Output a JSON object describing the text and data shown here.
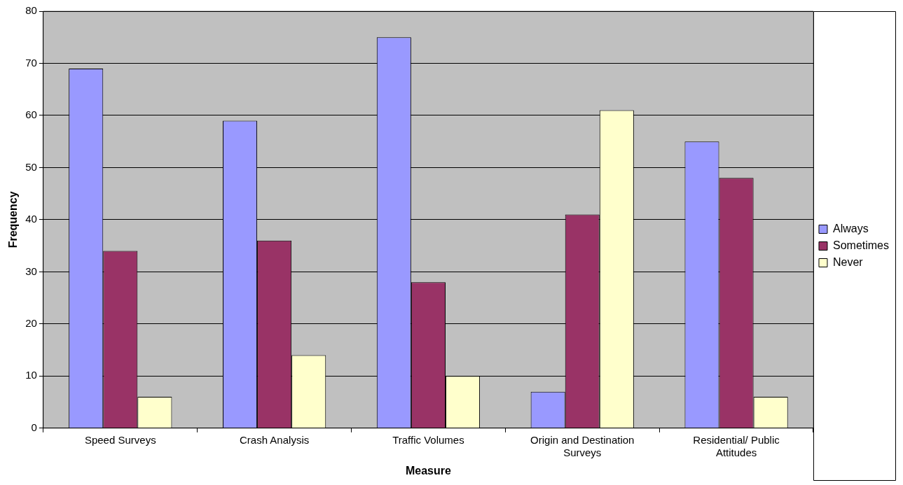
{
  "chart_data": {
    "type": "bar",
    "xlabel": "Measure",
    "ylabel": "Frequency",
    "categories": [
      "Speed Surveys",
      "Crash Analysis",
      "Traffic Volumes",
      "Origin and Destination Surveys",
      "Residential/ Public Attitudes"
    ],
    "series": [
      {
        "name": "Always",
        "color": "#9999ff",
        "values": [
          69,
          59,
          75,
          7,
          55
        ]
      },
      {
        "name": "Sometimes",
        "color": "#993366",
        "values": [
          34,
          36,
          28,
          41,
          48
        ]
      },
      {
        "name": "Never",
        "color": "#ffffcc",
        "values": [
          6,
          14,
          10,
          61,
          6
        ]
      }
    ],
    "ylim": [
      0,
      80
    ],
    "yticks": [
      0,
      10,
      20,
      30,
      40,
      50,
      60,
      70,
      80
    ],
    "grid": "y",
    "legend": "right"
  }
}
